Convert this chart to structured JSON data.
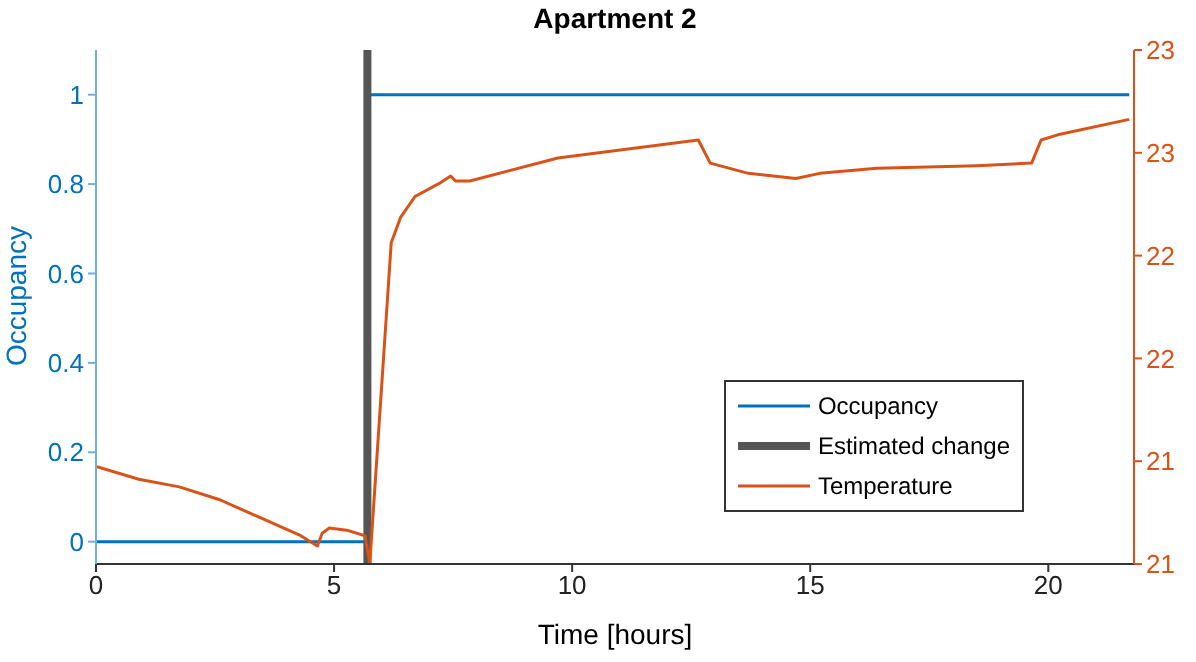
{
  "chart_data": {
    "type": "line",
    "title": "Apartment 2",
    "xlabel": "Time [hours]",
    "ylabel": "Occupancy",
    "xlim": [
      0,
      21.8
    ],
    "xticks": [
      0,
      5,
      10,
      15,
      20
    ],
    "ylim": [
      -0.05,
      1.1
    ],
    "yticks": [
      0,
      0.2,
      0.4,
      0.6,
      0.8,
      1
    ],
    "y2lim": [
      21,
      23
    ],
    "y2ticks": [
      {
        "value": 21,
        "label": "21"
      },
      {
        "value": 21.4,
        "label": "21"
      },
      {
        "value": 21.8,
        "label": "22"
      },
      {
        "value": 22.2,
        "label": "22"
      },
      {
        "value": 22.6,
        "label": "23"
      },
      {
        "value": 23,
        "label": "23"
      }
    ],
    "legend": "bottom right",
    "line_style": "solid",
    "marker": "none",
    "series": [
      {
        "name": "Occupancy",
        "color": "#0072bd",
        "x": [
          0,
          5.7,
          5.7,
          21.7
        ],
        "values": [
          0,
          0,
          1,
          1
        ]
      },
      {
        "name": "Estimated change",
        "color": "#555555",
        "x": [
          5.7,
          5.7
        ],
        "values": [
          -0.05,
          1.1
        ]
      },
      {
        "name": "Temperature",
        "color": "#d95319",
        "axis": "y2",
        "x": [
          0,
          0.9,
          1.75,
          2.6,
          3.45,
          4.3,
          4.65,
          4.75,
          4.9,
          5.3,
          5.65,
          5.75,
          6.2,
          6.4,
          6.7,
          7.2,
          7.45,
          7.55,
          7.85,
          9.7,
          12.65,
          12.9,
          13.7,
          14.7,
          15.2,
          16.4,
          18.5,
          19.65,
          19.85,
          20.2,
          21.7
        ],
        "values": [
          21.38,
          21.33,
          21.3,
          21.25,
          21.18,
          21.11,
          21.07,
          21.12,
          21.14,
          21.13,
          21.11,
          21.0,
          22.25,
          22.35,
          22.43,
          22.48,
          22.51,
          22.49,
          22.49,
          22.58,
          22.65,
          22.56,
          22.52,
          22.5,
          22.52,
          22.54,
          22.55,
          22.56,
          22.65,
          22.67,
          22.73
        ]
      }
    ]
  }
}
